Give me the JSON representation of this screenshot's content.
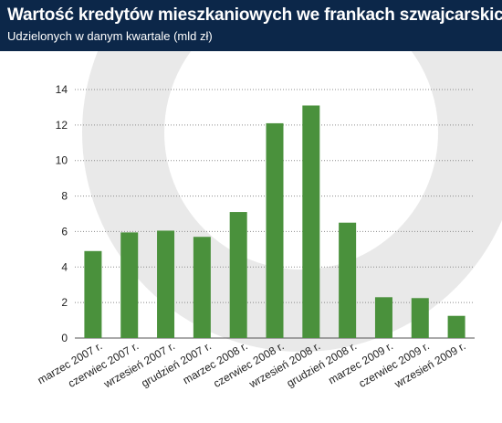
{
  "header": {
    "title": "Wartość kredytów mieszkaniowych we frankach szwajcarskich",
    "subtitle": "Udzielonych w danym kwartale (mld zł)"
  },
  "colors": {
    "header_bg": "#0c2749",
    "bar": "#4a913c",
    "grid": "#8c8c8c",
    "watermark": "#e9e9e9",
    "text": "#222222"
  },
  "chart_data": {
    "type": "bar",
    "categories": [
      "marzec 2007 r.",
      "czerwiec 2007 r.",
      "wrzesień 2007 r.",
      "grudzień 2007 r.",
      "marzec 2008 r.",
      "czerwiec 2008 r.",
      "wrzesień 2008 r.",
      "grudzień 2008 r.",
      "marzec 2009 r.",
      "czerwiec 2009 r.",
      "wrzesień 2009 r."
    ],
    "values": [
      4.9,
      5.95,
      6.05,
      5.7,
      7.1,
      12.1,
      13.1,
      6.5,
      2.3,
      2.25,
      1.25
    ],
    "title": "Wartość kredytów mieszkaniowych we frankach szwajcarskich",
    "subtitle": "Udzielonych w danym kwartale (mld zł)",
    "xlabel": "",
    "ylabel": "",
    "ylim": [
      0,
      14
    ],
    "yticks": [
      0,
      2,
      4,
      6,
      8,
      10,
      12,
      14
    ],
    "grid": true,
    "grid_style": "dotted",
    "legend": "none"
  }
}
